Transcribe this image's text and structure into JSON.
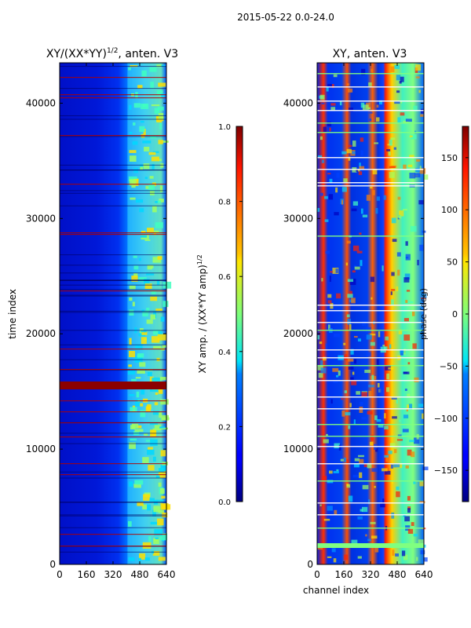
{
  "figure": {
    "suptitle": "2015-05-22 0.0-24.0"
  },
  "chart_data": [
    {
      "type": "heatmap",
      "title": "XY/(XX*YY)^{1/2}, anten. V3",
      "title_main": "XY/(XX*YY)",
      "title_sup": "1/2",
      "title_tail": ", anten. V3",
      "xlabel": "",
      "ylabel": "time index",
      "xlim": [
        0,
        640
      ],
      "ylim": [
        0,
        43500
      ],
      "xticks": [
        0,
        160,
        320,
        480,
        640
      ],
      "yticks": [
        0,
        10000,
        20000,
        30000,
        40000
      ],
      "colorbar": {
        "label": "XY amp. / (XX*YY amp)^{1/2}",
        "label_main": "XY amp. / (XX*YY amp)",
        "label_sup": "1/2",
        "range": [
          0.0,
          1.0
        ],
        "ticks": [
          0.0,
          0.2,
          0.4,
          0.6,
          0.8,
          1.0
        ],
        "tick_labels": [
          "0.0",
          "0.2",
          "0.4",
          "0.6",
          "0.8",
          "1.0"
        ],
        "colormap": "jet"
      }
    },
    {
      "type": "heatmap",
      "title": "XY, anten. V3",
      "xlabel": "channel index",
      "ylabel": "",
      "xlim": [
        0,
        640
      ],
      "ylim": [
        0,
        43500
      ],
      "xticks": [
        0,
        160,
        320,
        480,
        640
      ],
      "yticks": [
        0,
        10000,
        20000,
        30000,
        40000
      ],
      "colorbar": {
        "label": "phase (deg)",
        "range": [
          -180,
          180
        ],
        "ticks": [
          -150,
          -100,
          -50,
          0,
          50,
          100,
          150
        ],
        "tick_labels": [
          "−150",
          "−100",
          "−50",
          "0",
          "50",
          "100",
          "150"
        ],
        "colormap": "jet"
      }
    }
  ]
}
